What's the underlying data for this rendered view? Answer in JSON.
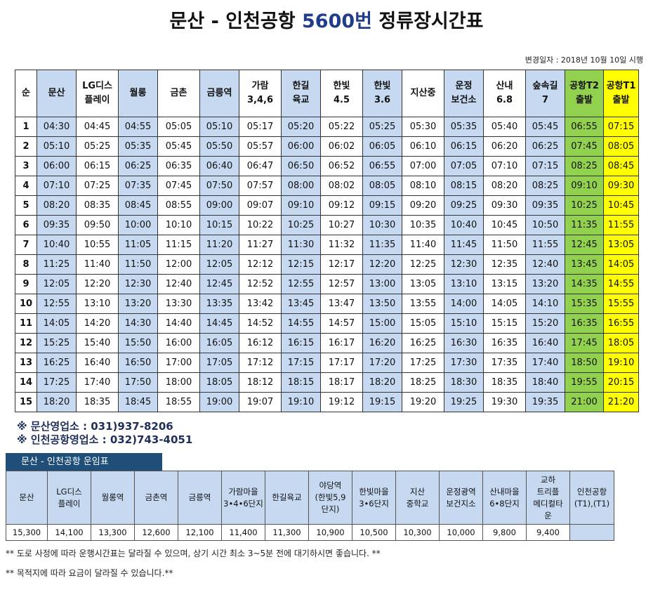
{
  "title": {
    "main": "문산 - 인천공항 ",
    "number": "5600번",
    "suffix": " 정류장시간표"
  },
  "changed_date": "변경일자 : 2018년 10월 10일 시행",
  "schedule": {
    "headers": [
      {
        "l1": "순",
        "l2": "",
        "color": "hdr"
      },
      {
        "l1": "문산",
        "l2": "",
        "color": "blue"
      },
      {
        "l1": "LG디스",
        "l2": "플레이",
        "color": "hdr"
      },
      {
        "l1": "월롱",
        "l2": "",
        "color": "blue"
      },
      {
        "l1": "금촌",
        "l2": "",
        "color": "hdr"
      },
      {
        "l1": "금릉역",
        "l2": "",
        "color": "blue"
      },
      {
        "l1": "가람",
        "l2": "3,4,6",
        "color": "hdr"
      },
      {
        "l1": "한길",
        "l2": "육교",
        "color": "blue"
      },
      {
        "l1": "한빛",
        "l2": "4.5",
        "color": "hdr"
      },
      {
        "l1": "한빛",
        "l2": "3.6",
        "color": "blue"
      },
      {
        "l1": "지산중",
        "l2": "",
        "color": "hdr"
      },
      {
        "l1": "운정",
        "l2": "보건소",
        "color": "blue"
      },
      {
        "l1": "산내",
        "l2": "6.8",
        "color": "hdr"
      },
      {
        "l1": "숲속길",
        "l2": "7",
        "color": "blue"
      },
      {
        "l1": "공항T2",
        "l2": "출발",
        "color": "green"
      },
      {
        "l1": "공항T1",
        "l2": "출발",
        "color": "yellow"
      }
    ],
    "rows": [
      [
        "1",
        "04:30",
        "04:45",
        "04:55",
        "05:05",
        "05:10",
        "05:17",
        "05:20",
        "05:22",
        "05:25",
        "05:30",
        "05:35",
        "05:40",
        "05:45",
        "06:55",
        "07:15"
      ],
      [
        "2",
        "05:10",
        "05:25",
        "05:35",
        "05:45",
        "05:50",
        "05:57",
        "06:00",
        "06:02",
        "06:05",
        "06:10",
        "06:15",
        "06:20",
        "06:25",
        "07:45",
        "08:05"
      ],
      [
        "3",
        "06:00",
        "06:15",
        "06:25",
        "06:35",
        "06:40",
        "06:47",
        "06:50",
        "06:52",
        "06:55",
        "07:00",
        "07:05",
        "07:10",
        "07:15",
        "08:25",
        "08:45"
      ],
      [
        "4",
        "07:10",
        "07:25",
        "07:35",
        "07:45",
        "07:50",
        "07:57",
        "08:00",
        "08:02",
        "08:05",
        "08:10",
        "08:15",
        "08:20",
        "08:25",
        "09:10",
        "09:30"
      ],
      [
        "5",
        "08:20",
        "08:35",
        "08:45",
        "08:55",
        "09:00",
        "09:07",
        "09:10",
        "09:12",
        "09:15",
        "09:20",
        "09:25",
        "09:30",
        "09:35",
        "10:25",
        "10:45"
      ],
      [
        "6",
        "09:35",
        "09:50",
        "10:00",
        "10:10",
        "10:15",
        "10:22",
        "10:25",
        "10:27",
        "10:30",
        "10:35",
        "10:40",
        "10:45",
        "10:50",
        "11:35",
        "11:55"
      ],
      [
        "7",
        "10:40",
        "10:55",
        "11:05",
        "11:15",
        "11:20",
        "11:27",
        "11:30",
        "11:32",
        "11:35",
        "11:40",
        "11:45",
        "11:50",
        "11:55",
        "12:45",
        "13:05"
      ],
      [
        "8",
        "11:25",
        "11:40",
        "11:50",
        "12:00",
        "12:05",
        "12:12",
        "12:15",
        "12:17",
        "12:20",
        "12:25",
        "12:30",
        "12:35",
        "12:40",
        "13:45",
        "14:05"
      ],
      [
        "9",
        "12:05",
        "12:20",
        "12:30",
        "12:40",
        "12:45",
        "12:52",
        "12:55",
        "12:57",
        "13:00",
        "13:05",
        "13:10",
        "13:15",
        "13:20",
        "14:35",
        "14:55"
      ],
      [
        "10",
        "12:55",
        "13:10",
        "13:20",
        "13:30",
        "13:35",
        "13:42",
        "13:45",
        "13:47",
        "13:50",
        "13:55",
        "14:00",
        "14:05",
        "14:10",
        "15:35",
        "15:55"
      ],
      [
        "11",
        "14:05",
        "14:20",
        "14:30",
        "14:40",
        "14:45",
        "14:52",
        "14:55",
        "14:57",
        "15:00",
        "15:05",
        "15:10",
        "15:15",
        "15:20",
        "16:35",
        "16:55"
      ],
      [
        "12",
        "15:25",
        "15:40",
        "15:50",
        "16:00",
        "16:05",
        "16:12",
        "16:15",
        "16:17",
        "16:20",
        "16:25",
        "16:30",
        "16:35",
        "16:40",
        "17:45",
        "18:05"
      ],
      [
        "13",
        "16:25",
        "16:40",
        "16:50",
        "17:00",
        "17:05",
        "17:12",
        "17:15",
        "17:17",
        "17:20",
        "17:25",
        "17:30",
        "17:35",
        "17:40",
        "18:50",
        "19:10"
      ],
      [
        "14",
        "17:25",
        "17:40",
        "17:50",
        "18:00",
        "18:05",
        "18:12",
        "18:15",
        "18:17",
        "18:20",
        "18:25",
        "18:30",
        "18:35",
        "18:40",
        "19:55",
        "20:15"
      ],
      [
        "15",
        "18:20",
        "18:35",
        "18:45",
        "18:55",
        "19:00",
        "19:07",
        "19:10",
        "19:12",
        "19:15",
        "19:20",
        "19:25",
        "19:30",
        "19:35",
        "21:00",
        "21:20"
      ]
    ]
  },
  "contacts": [
    "※ 문산영업소 :  031)937-8206",
    "※ 인천공항영업소 : 032)743-4051"
  ],
  "fare_table": {
    "title": "문산 - 인천공항 운임표",
    "headers": [
      [
        "문산"
      ],
      [
        "LG디스",
        "플레이"
      ],
      [
        "월롱역"
      ],
      [
        "금촌역"
      ],
      [
        "금릉역"
      ],
      [
        "가람마을",
        "3•4•6단지"
      ],
      [
        "한길육교"
      ],
      [
        "야당역",
        "(한빛5,9",
        "단지)"
      ],
      [
        "한빛마을",
        "3•6단지"
      ],
      [
        "지산",
        "중학교"
      ],
      [
        "운정광역",
        "보건지소"
      ],
      [
        "산내마을",
        "6•8단지"
      ],
      [
        "교하",
        "트리플",
        "메디컬타",
        "운"
      ],
      [
        "인천공항",
        "(T1),(T1)"
      ]
    ],
    "values": [
      "15,300",
      "14,100",
      "13,300",
      "12,600",
      "12,100",
      "11,400",
      "11,300",
      "10,900",
      "10,500",
      "10,300",
      "10,000",
      "9,800",
      "9,400",
      ""
    ]
  },
  "notes": [
    "** 도로 사정에 따라 운행시간표는 달라질 수 있으며, 상기 시간 최소 3~5분 전에 대기하시면 좋습니다. **",
    "** 목적지에 따라 요금이 달라질 수 있습니다.**"
  ],
  "colors": {
    "blue": "#c6d9f0",
    "green": "#92d050",
    "yellow": "#ffff00",
    "fare_title_bg": "#1f4e79"
  }
}
